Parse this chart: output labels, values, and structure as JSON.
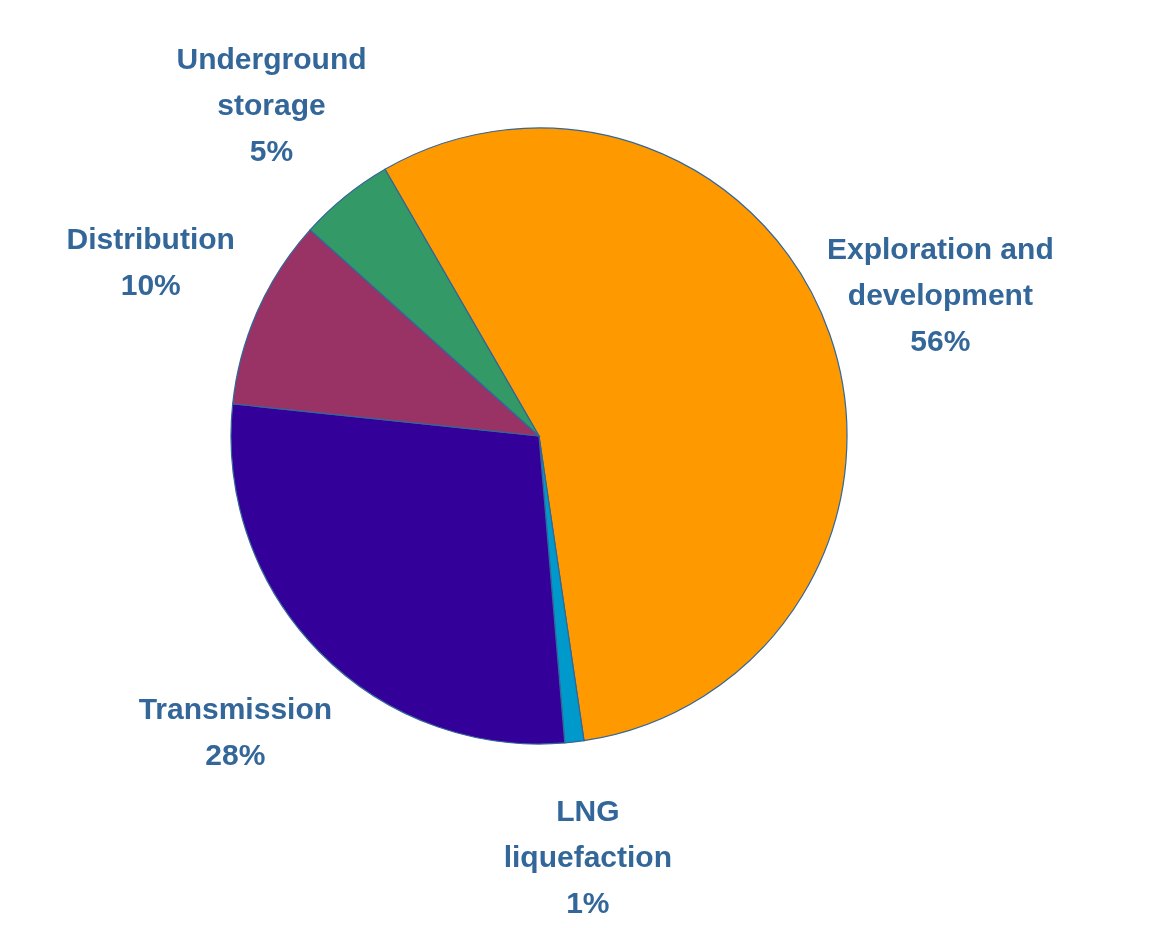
{
  "chart_data": {
    "type": "pie",
    "categories": [
      "Exploration and development",
      "LNG liquefaction",
      "Transmission",
      "Distribution",
      "Underground storage"
    ],
    "values": [
      56,
      1,
      28,
      10,
      5
    ],
    "value_labels": [
      "56%",
      "1%",
      "28%",
      "10%",
      "5%"
    ],
    "colors": [
      "#ff9900",
      "#0099cc",
      "#330099",
      "#993366",
      "#339966"
    ]
  }
}
